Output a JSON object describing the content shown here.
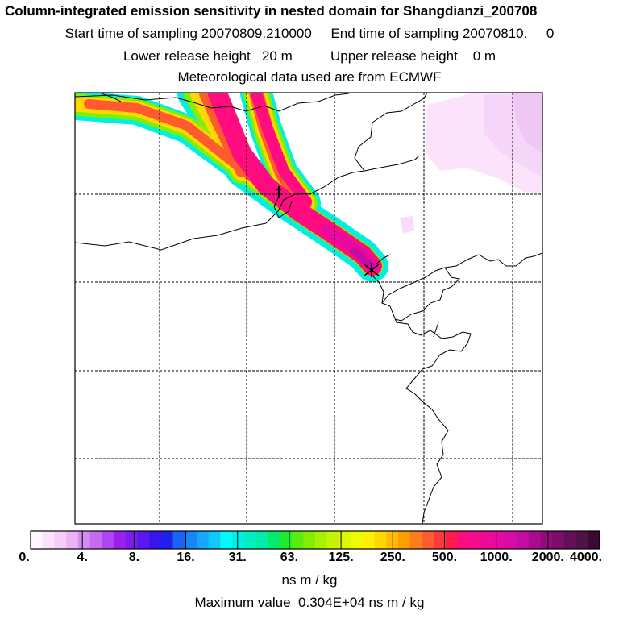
{
  "header": {
    "title": "Column-integrated emission sensitivity in nested domain for Shangdianzi_200708",
    "start_label": "Start time of sampling",
    "start_value": "20070809.210000",
    "end_label": "End time of sampling",
    "end_value": "20070810.     0",
    "lower_label": "Lower release height",
    "lower_value": "20 m",
    "upper_label": "Upper release height",
    "upper_value": "0 m",
    "met": "Meteorological data used are from ECMWF"
  },
  "colorbar": {
    "ticks": [
      "0.",
      "4.",
      "8.",
      "16.",
      "31.",
      "63.",
      "125.",
      "250.",
      "500.",
      "1000.",
      "2000.",
      "4000."
    ],
    "colors": [
      "#fff6ff",
      "#fbe1fb",
      "#f6ccf8",
      "#eab4f3",
      "#d48cf0",
      "#c46cf0",
      "#b044f0",
      "#9a20ee",
      "#7c1cf0",
      "#5a18ee",
      "#3a14f0",
      "#2020ee",
      "#1c62f4",
      "#1886f8",
      "#14a8fc",
      "#10c8fc",
      "#00fafa",
      "#00f0e0",
      "#00eec4",
      "#00eca8",
      "#00ea6c",
      "#20ea30",
      "#58ec10",
      "#84ee00",
      "#a8f000",
      "#c4f400",
      "#dcf800",
      "#f0fa00",
      "#fff000",
      "#ffd800",
      "#ffbc00",
      "#ff9e00",
      "#ff7c1c",
      "#ff5a30",
      "#ff3a3a",
      "#ff1c4c",
      "#ff0c80",
      "#f80a90",
      "#f00a98",
      "#e80aa0",
      "#d80aa8",
      "#c40ca0",
      "#aa0c90",
      "#900c7c",
      "#7a0e68",
      "#641058",
      "#50104a",
      "#3a0a30"
    ],
    "units": "ns m / kg"
  },
  "footer": {
    "max_label": "Maximum value",
    "max_value": "0.304E+04",
    "max_units": "ns m / kg"
  }
}
